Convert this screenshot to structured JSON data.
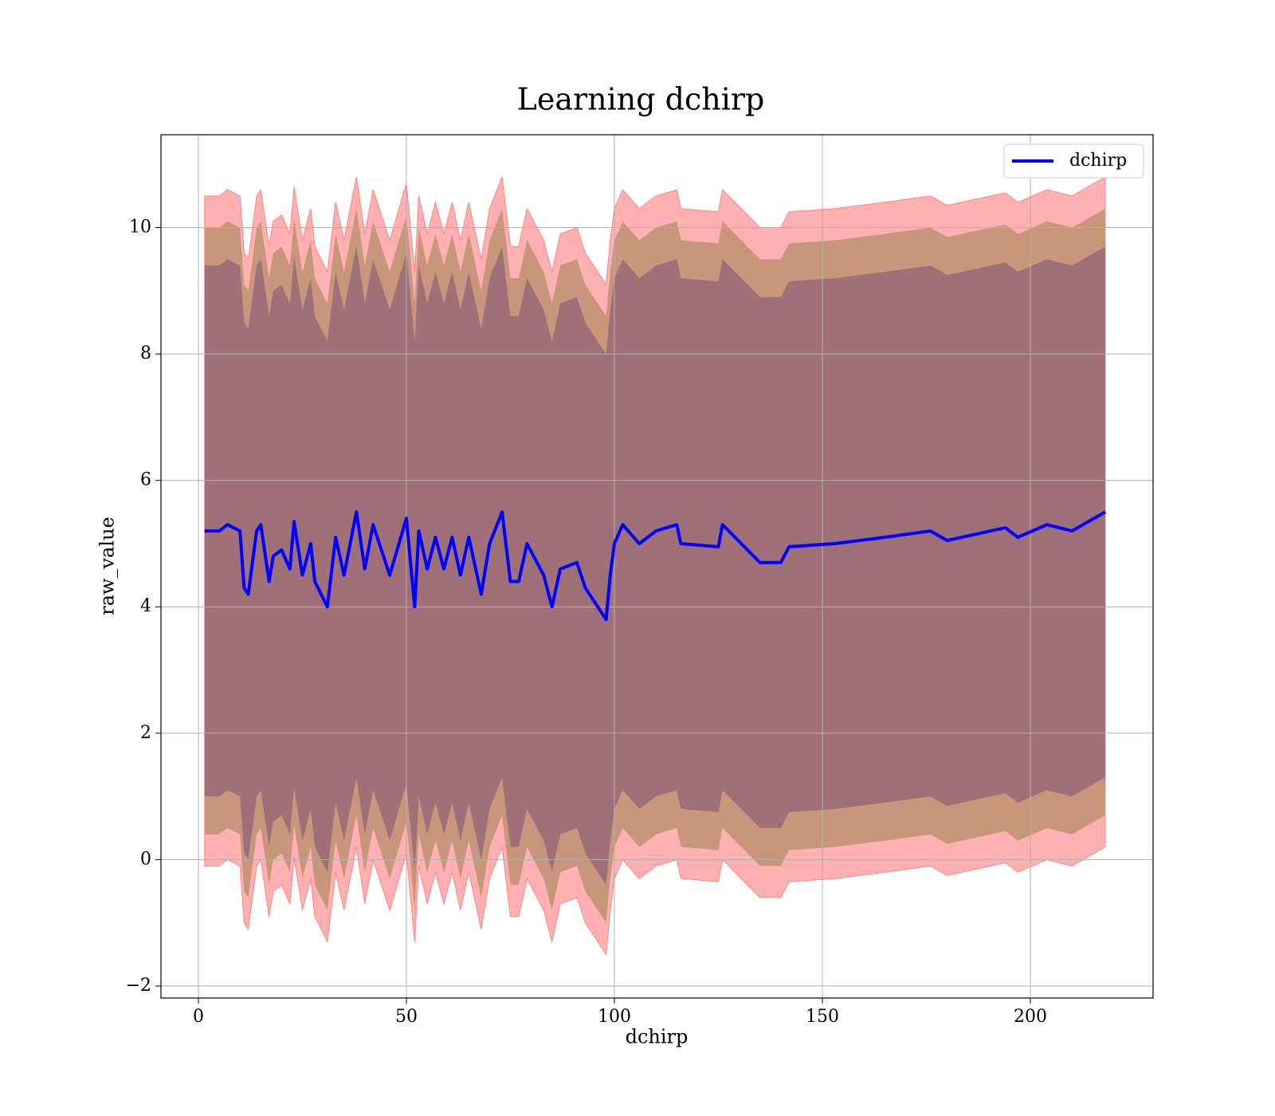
{
  "chart_data": {
    "type": "line",
    "title": "Learning dchirp",
    "xlabel": "dchirp",
    "ylabel": "raw_value",
    "x": [
      1.5,
      5,
      7,
      10,
      11,
      12,
      14,
      15,
      17,
      18,
      20,
      22,
      23,
      25,
      27,
      28,
      31,
      33,
      35,
      38,
      40,
      42,
      46,
      50,
      52,
      53,
      55,
      57,
      59,
      61,
      63,
      65,
      68,
      70,
      73,
      75,
      77,
      79,
      83,
      85,
      87,
      91,
      93,
      96,
      98,
      99,
      100,
      102,
      106,
      110,
      115,
      116,
      125,
      126,
      135,
      140,
      142,
      153,
      165,
      176,
      180,
      194,
      197,
      204,
      210,
      218
    ],
    "series": [
      {
        "name": "dchirp",
        "color": "#0000ff",
        "values": [
          5.2,
          5.2,
          5.3,
          5.2,
          4.3,
          4.2,
          5.2,
          5.3,
          4.4,
          4.8,
          4.9,
          4.6,
          5.35,
          4.5,
          5.0,
          4.4,
          4.0,
          5.1,
          4.5,
          5.5,
          4.6,
          5.3,
          4.5,
          5.4,
          4.0,
          5.2,
          4.6,
          5.1,
          4.6,
          5.1,
          4.5,
          5.1,
          4.2,
          5.0,
          5.5,
          4.4,
          4.4,
          5.0,
          4.5,
          4.0,
          4.6,
          4.7,
          4.3,
          4.0,
          3.8,
          4.5,
          5.0,
          5.3,
          5.0,
          5.2,
          5.3,
          5.0,
          4.95,
          5.3,
          4.7,
          4.7,
          4.95,
          5.0,
          5.1,
          5.2,
          5.05,
          5.25,
          5.1,
          5.3,
          5.2,
          5.5
        ]
      }
    ],
    "bands": [
      {
        "color": "#ffb1b1",
        "upper": [
          10.5,
          10.5,
          10.6,
          10.5,
          9.6,
          9.5,
          10.5,
          10.6,
          9.7,
          10.1,
          10.2,
          9.9,
          10.65,
          9.8,
          10.3,
          9.7,
          9.3,
          10.4,
          9.8,
          10.8,
          9.9,
          10.6,
          9.8,
          10.7,
          9.3,
          10.5,
          9.9,
          10.4,
          9.9,
          10.4,
          9.8,
          10.4,
          9.5,
          10.3,
          10.8,
          9.7,
          9.7,
          10.3,
          9.8,
          9.3,
          9.9,
          10.0,
          9.6,
          9.3,
          9.1,
          9.8,
          10.3,
          10.6,
          10.3,
          10.5,
          10.6,
          10.3,
          10.25,
          10.6,
          10.0,
          10.0,
          10.25,
          10.3,
          10.4,
          10.5,
          10.35,
          10.55,
          10.4,
          10.6,
          10.5,
          10.8
        ],
        "lower": [
          -0.1,
          -0.1,
          0.0,
          -0.1,
          -1.0,
          -1.1,
          -0.1,
          0.0,
          -0.9,
          -0.5,
          -0.4,
          -0.7,
          0.05,
          -0.8,
          -0.3,
          -0.9,
          -1.3,
          -0.2,
          -0.8,
          0.2,
          -0.7,
          0.0,
          -0.8,
          0.1,
          -1.3,
          -0.1,
          -0.7,
          -0.2,
          -0.7,
          -0.2,
          -0.8,
          -0.2,
          -1.1,
          -0.3,
          0.2,
          -0.9,
          -0.9,
          -0.3,
          -0.8,
          -1.3,
          -0.7,
          -0.6,
          -1.0,
          -1.3,
          -1.5,
          -0.8,
          -0.3,
          0.0,
          -0.3,
          -0.1,
          0.0,
          -0.3,
          -0.35,
          0.0,
          -0.6,
          -0.6,
          -0.35,
          -0.3,
          -0.2,
          -0.1,
          -0.25,
          -0.05,
          -0.2,
          0.0,
          -0.1,
          0.2
        ]
      },
      {
        "color": "#c8977b",
        "upper": [
          10.0,
          10.0,
          10.1,
          10.0,
          9.1,
          9.0,
          10.0,
          10.1,
          9.2,
          9.6,
          9.7,
          9.4,
          10.15,
          9.3,
          9.8,
          9.2,
          8.8,
          9.9,
          9.3,
          10.3,
          9.4,
          10.1,
          9.3,
          10.2,
          8.8,
          10.0,
          9.4,
          9.9,
          9.4,
          9.9,
          9.3,
          9.9,
          9.0,
          9.8,
          10.3,
          9.2,
          9.2,
          9.8,
          9.3,
          8.8,
          9.4,
          9.5,
          9.1,
          8.8,
          8.6,
          9.3,
          9.8,
          10.1,
          9.8,
          10.0,
          10.1,
          9.8,
          9.75,
          10.1,
          9.5,
          9.5,
          9.75,
          9.8,
          9.9,
          10.0,
          9.85,
          10.05,
          9.9,
          10.1,
          10.0,
          10.3
        ],
        "lower": [
          0.4,
          0.4,
          0.5,
          0.4,
          -0.5,
          -0.6,
          0.4,
          0.5,
          -0.4,
          0.0,
          0.1,
          -0.2,
          0.55,
          -0.3,
          0.2,
          -0.4,
          -0.8,
          0.3,
          -0.3,
          0.7,
          -0.2,
          0.5,
          -0.3,
          0.6,
          -0.8,
          0.4,
          -0.2,
          0.3,
          -0.2,
          0.3,
          -0.3,
          0.3,
          -0.6,
          0.2,
          0.7,
          -0.4,
          -0.4,
          0.2,
          -0.3,
          -0.8,
          -0.2,
          -0.1,
          -0.5,
          -0.8,
          -1.0,
          -0.3,
          0.2,
          0.5,
          0.2,
          0.4,
          0.5,
          0.2,
          0.15,
          0.5,
          -0.1,
          -0.1,
          0.15,
          0.2,
          0.3,
          0.4,
          0.25,
          0.45,
          0.3,
          0.5,
          0.4,
          0.7
        ]
      },
      {
        "color": "#a07078",
        "upper": [
          9.4,
          9.4,
          9.5,
          9.4,
          8.5,
          8.4,
          9.4,
          9.5,
          8.6,
          9.0,
          9.1,
          8.8,
          9.55,
          8.7,
          9.2,
          8.6,
          8.2,
          9.3,
          8.7,
          9.7,
          8.8,
          9.5,
          8.7,
          9.6,
          8.2,
          9.4,
          8.8,
          9.3,
          8.8,
          9.3,
          8.7,
          9.3,
          8.4,
          9.2,
          9.7,
          8.6,
          8.6,
          9.2,
          8.7,
          8.2,
          8.8,
          8.9,
          8.5,
          8.2,
          8.0,
          8.7,
          9.2,
          9.5,
          9.2,
          9.4,
          9.5,
          9.2,
          9.15,
          9.5,
          8.9,
          8.9,
          9.15,
          9.2,
          9.3,
          9.4,
          9.25,
          9.45,
          9.3,
          9.5,
          9.4,
          9.7
        ],
        "lower": [
          1.0,
          1.0,
          1.1,
          1.0,
          0.1,
          0.0,
          1.0,
          1.1,
          0.2,
          0.6,
          0.7,
          0.4,
          1.15,
          0.3,
          0.8,
          0.2,
          -0.2,
          0.9,
          0.3,
          1.3,
          0.4,
          1.1,
          0.3,
          1.2,
          -0.2,
          1.0,
          0.4,
          0.9,
          0.4,
          0.9,
          0.3,
          0.9,
          0.0,
          0.8,
          1.3,
          0.2,
          0.2,
          0.8,
          0.3,
          -0.2,
          0.4,
          0.5,
          0.1,
          -0.2,
          -0.4,
          0.3,
          0.8,
          1.1,
          0.8,
          1.0,
          1.1,
          0.8,
          0.75,
          1.1,
          0.5,
          0.5,
          0.75,
          0.8,
          0.9,
          1.0,
          0.85,
          1.05,
          0.9,
          1.1,
          1.0,
          1.3
        ]
      }
    ],
    "xlim": [
      -9,
      229.5
    ],
    "ylim": [
      -2.19,
      11.47
    ],
    "xticks": [
      0,
      50,
      100,
      150,
      200
    ],
    "yticks": [
      {
        "value": -2,
        "label": "−2"
      },
      0,
      2,
      4,
      6,
      8,
      10
    ],
    "grid": true,
    "legend": "upper right"
  }
}
